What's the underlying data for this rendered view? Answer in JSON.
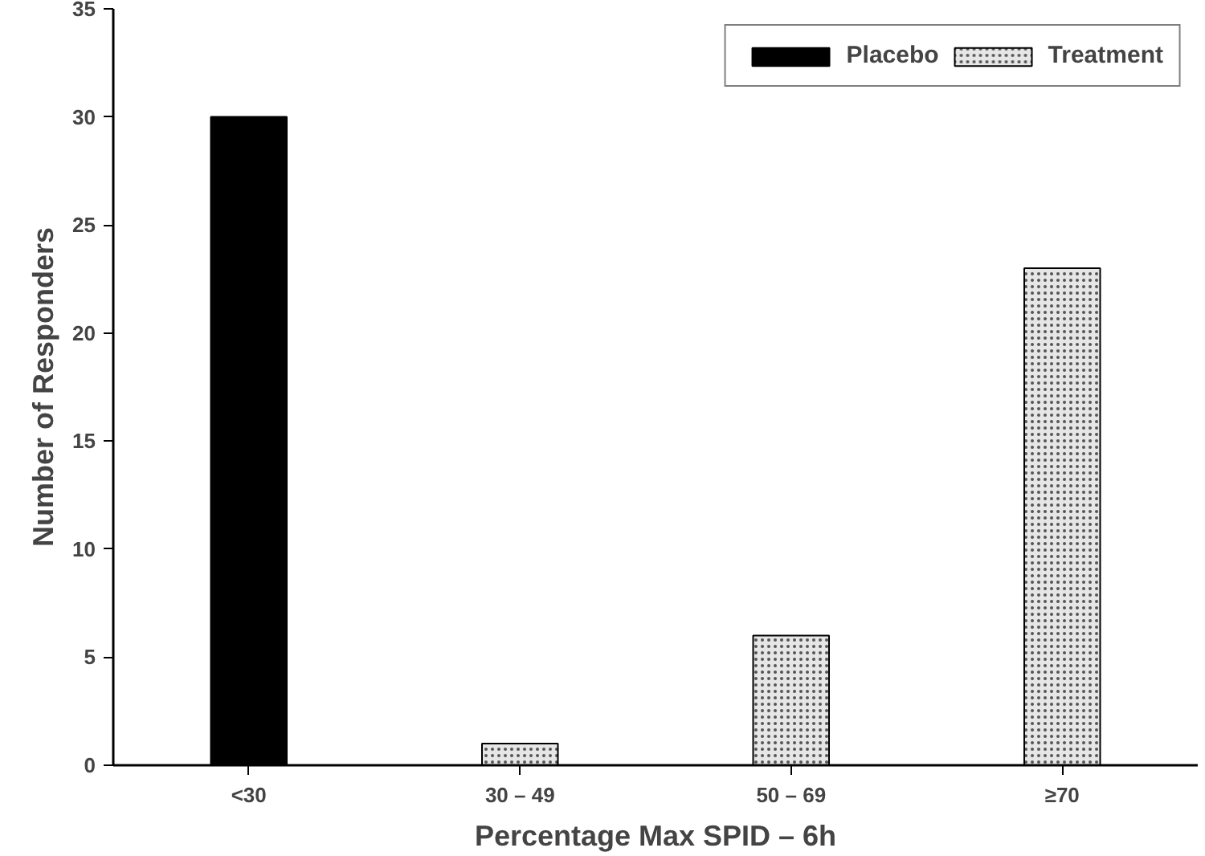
{
  "chart_data": {
    "type": "bar",
    "stacked": true,
    "xlabel": "Percentage Max SPID – 6h",
    "ylabel": "Number of Responders",
    "categories": [
      "<30",
      "30 – 49",
      "50 – 69",
      "≥70"
    ],
    "series": [
      {
        "name": "Placebo",
        "color": "#000000",
        "values": [
          30,
          null,
          null,
          null
        ]
      },
      {
        "name": "Treatment",
        "color": "#e6e6e6",
        "values": [
          null,
          1,
          6,
          23
        ]
      }
    ],
    "ylim": [
      0,
      35
    ],
    "yticks": [
      0,
      5,
      10,
      15,
      20,
      25,
      30,
      35
    ],
    "grid": false,
    "legend": "top right"
  }
}
